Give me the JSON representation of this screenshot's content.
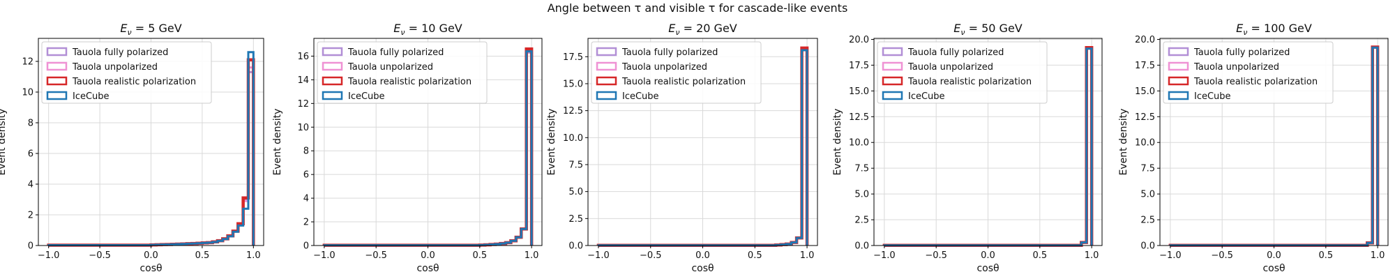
{
  "figure": {
    "suptitle": "Angle between τ and visible τ for cascade-like events"
  },
  "colors": {
    "fully_polarized": "#b28fd6",
    "unpolarized": "#ef92d4",
    "realistic": "#d62728",
    "icecube": "#1f77b4",
    "grid": "#d9d9d9"
  },
  "chart_data": [
    {
      "type": "step-histogram",
      "title_prefix": "E",
      "title_sub": "ν",
      "title_suffix": " = 5 GeV",
      "xlabel": "cosθ",
      "ylabel": "Event density",
      "xlim": [
        -1.1,
        1.1
      ],
      "ylim": [
        0,
        13.5
      ],
      "xticks": [
        "-1.0",
        "-0.5",
        "0.0",
        "0.5",
        "1.0"
      ],
      "yticks": [
        "0",
        "2",
        "4",
        "6",
        "8",
        "10",
        "12"
      ],
      "ytick_values": [
        0,
        2,
        4,
        6,
        8,
        10,
        12
      ],
      "legend": [
        "Tauola fully polarized",
        "Tauola unpolarized",
        "Tauola realistic polarization",
        "IceCube"
      ],
      "bins": {
        "edges": [
          -1.0,
          0.0,
          0.05,
          0.1,
          0.15,
          0.2,
          0.25,
          0.3,
          0.35,
          0.4,
          0.45,
          0.5,
          0.55,
          0.6,
          0.65,
          0.7,
          0.75,
          0.8,
          0.85,
          0.9,
          0.95,
          1.0
        ],
        "icecube": [
          0.02,
          0.04,
          0.05,
          0.06,
          0.07,
          0.08,
          0.09,
          0.1,
          0.12,
          0.13,
          0.15,
          0.17,
          0.19,
          0.23,
          0.3,
          0.42,
          0.6,
          0.9,
          1.3,
          2.4,
          12.6
        ],
        "fully_polarized": [
          0.02,
          0.04,
          0.05,
          0.06,
          0.07,
          0.08,
          0.09,
          0.1,
          0.12,
          0.13,
          0.15,
          0.17,
          0.19,
          0.24,
          0.31,
          0.44,
          0.64,
          0.95,
          1.45,
          3.0,
          11.3
        ],
        "unpolarized": [
          0.02,
          0.04,
          0.05,
          0.06,
          0.07,
          0.08,
          0.09,
          0.1,
          0.12,
          0.13,
          0.15,
          0.17,
          0.19,
          0.24,
          0.31,
          0.43,
          0.62,
          0.92,
          1.4,
          2.9,
          11.6
        ],
        "realistic": [
          0.02,
          0.04,
          0.05,
          0.06,
          0.07,
          0.08,
          0.09,
          0.1,
          0.12,
          0.13,
          0.15,
          0.17,
          0.19,
          0.24,
          0.31,
          0.44,
          0.63,
          0.94,
          1.42,
          3.1,
          12.1
        ]
      }
    },
    {
      "type": "step-histogram",
      "title_prefix": "E",
      "title_sub": "ν",
      "title_suffix": " = 10 GeV",
      "xlabel": "cosθ",
      "ylabel": "Event density",
      "xlim": [
        -1.1,
        1.1
      ],
      "ylim": [
        0,
        17.5
      ],
      "xticks": [
        "-1.0",
        "-0.5",
        "0.0",
        "0.5",
        "1.0"
      ],
      "yticks": [
        "0",
        "2",
        "4",
        "6",
        "8",
        "10",
        "12",
        "14",
        "16"
      ],
      "ytick_values": [
        0,
        2,
        4,
        6,
        8,
        10,
        12,
        14,
        16
      ],
      "legend": [
        "Tauola fully polarized",
        "Tauola unpolarized",
        "Tauola realistic polarization",
        "IceCube"
      ],
      "bins": {
        "edges": [
          -1.0,
          0.5,
          0.55,
          0.6,
          0.65,
          0.7,
          0.75,
          0.8,
          0.85,
          0.9,
          0.95,
          1.0
        ],
        "icecube": [
          0.02,
          0.04,
          0.06,
          0.09,
          0.12,
          0.17,
          0.24,
          0.4,
          0.7,
          1.4,
          16.4
        ],
        "fully_polarized": [
          0.02,
          0.04,
          0.06,
          0.09,
          0.12,
          0.17,
          0.24,
          0.4,
          0.7,
          1.4,
          16.3
        ],
        "unpolarized": [
          0.02,
          0.04,
          0.06,
          0.09,
          0.12,
          0.17,
          0.24,
          0.4,
          0.7,
          1.4,
          16.5
        ],
        "realistic": [
          0.02,
          0.04,
          0.06,
          0.09,
          0.12,
          0.17,
          0.24,
          0.4,
          0.7,
          1.4,
          16.6
        ]
      }
    },
    {
      "type": "step-histogram",
      "title_prefix": "E",
      "title_sub": "ν",
      "title_suffix": " = 20 GeV",
      "xlabel": "cosθ",
      "ylabel": "Event density",
      "xlim": [
        -1.1,
        1.1
      ],
      "ylim": [
        0,
        19.2
      ],
      "xticks": [
        "-1.0",
        "-0.5",
        "0.0",
        "0.5",
        "1.0"
      ],
      "yticks": [
        "0.0",
        "2.5",
        "5.0",
        "7.5",
        "10.0",
        "12.5",
        "15.0",
        "17.5"
      ],
      "ytick_values": [
        0,
        2.5,
        5,
        7.5,
        10,
        12.5,
        15,
        17.5
      ],
      "legend": [
        "Tauola fully polarized",
        "Tauola unpolarized",
        "Tauola realistic polarization",
        "IceCube"
      ],
      "bins": {
        "edges": [
          -1.0,
          0.7,
          0.75,
          0.8,
          0.85,
          0.9,
          0.95,
          1.0
        ],
        "icecube": [
          0.02,
          0.05,
          0.09,
          0.14,
          0.28,
          0.7,
          18.1
        ],
        "fully_polarized": [
          0.02,
          0.05,
          0.09,
          0.14,
          0.28,
          0.7,
          18.1
        ],
        "unpolarized": [
          0.02,
          0.05,
          0.09,
          0.14,
          0.28,
          0.7,
          18.2
        ],
        "realistic": [
          0.02,
          0.05,
          0.09,
          0.14,
          0.28,
          0.7,
          18.3
        ]
      }
    },
    {
      "type": "step-histogram",
      "title_prefix": "E",
      "title_sub": "ν",
      "title_suffix": " = 50 GeV",
      "xlabel": "cosθ",
      "ylabel": "Event density",
      "xlim": [
        -1.1,
        1.1
      ],
      "ylim": [
        0,
        20.1
      ],
      "xticks": [
        "-1.0",
        "-0.5",
        "0.0",
        "0.5",
        "1.0"
      ],
      "yticks": [
        "0.0",
        "2.5",
        "5.0",
        "7.5",
        "10.0",
        "12.5",
        "15.0",
        "17.5",
        "20.0"
      ],
      "ytick_values": [
        0,
        2.5,
        5,
        7.5,
        10,
        12.5,
        15,
        17.5,
        20
      ],
      "legend": [
        "Tauola fully polarized",
        "Tauola unpolarized",
        "Tauola realistic polarization",
        "IceCube"
      ],
      "bins": {
        "edges": [
          -1.0,
          0.9,
          0.95,
          1.0
        ],
        "icecube": [
          0.02,
          0.3,
          19.1
        ],
        "fully_polarized": [
          0.02,
          0.3,
          19.1
        ],
        "unpolarized": [
          0.02,
          0.3,
          19.15
        ],
        "realistic": [
          0.02,
          0.3,
          19.2
        ]
      }
    },
    {
      "type": "step-histogram",
      "title_prefix": "E",
      "title_sub": "ν",
      "title_suffix": " = 100 GeV",
      "xlabel": "cosθ",
      "ylabel": "Event density",
      "xlim": [
        -1.1,
        1.1
      ],
      "ylim": [
        0,
        20.1
      ],
      "xticks": [
        "-1.0",
        "-0.5",
        "0.0",
        "0.5",
        "1.0"
      ],
      "yticks": [
        "0.0",
        "2.5",
        "5.0",
        "7.5",
        "10.0",
        "12.5",
        "15.0",
        "17.5",
        "20.0"
      ],
      "ytick_values": [
        0,
        2.5,
        5,
        7.5,
        10,
        12.5,
        15,
        17.5,
        20
      ],
      "legend": [
        "Tauola fully polarized",
        "Tauola unpolarized",
        "Tauola realistic polarization",
        "IceCube"
      ],
      "bins": {
        "edges": [
          -1.0,
          0.9,
          0.95,
          1.0
        ],
        "icecube": [
          0.02,
          0.25,
          19.2
        ],
        "fully_polarized": [
          0.02,
          0.25,
          19.2
        ],
        "unpolarized": [
          0.02,
          0.25,
          19.2
        ],
        "realistic": [
          0.02,
          0.25,
          19.25
        ]
      }
    }
  ]
}
